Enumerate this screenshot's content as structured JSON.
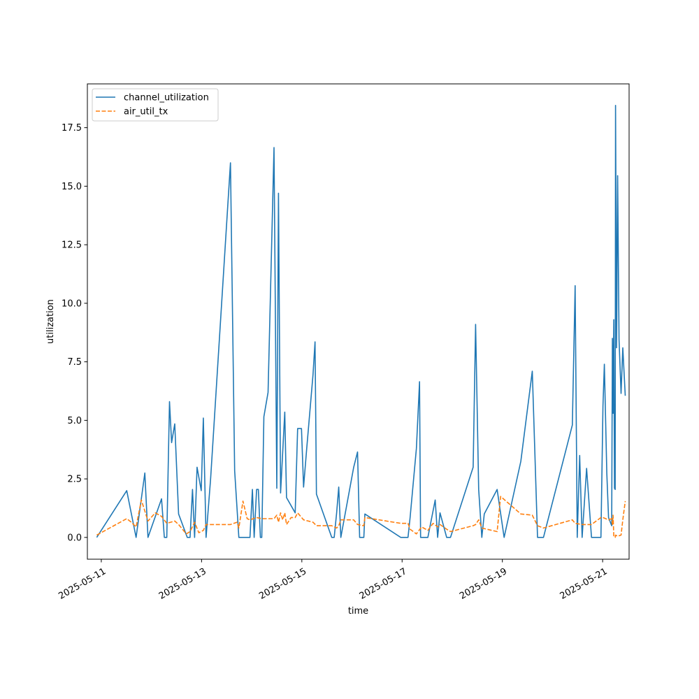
{
  "chart_data": {
    "type": "line",
    "xlabel": "time",
    "ylabel": "utilization",
    "xlim": [
      "2025-05-10T17:20",
      "2025-05-21T12:40"
    ],
    "ylim": [
      -0.93,
      19.37
    ],
    "x_ticks": [
      {
        "value": "2025-05-11T00:00",
        "label": "2025-05-11"
      },
      {
        "value": "2025-05-13T00:00",
        "label": "2025-05-13"
      },
      {
        "value": "2025-05-15T00:00",
        "label": "2025-05-15"
      },
      {
        "value": "2025-05-17T00:00",
        "label": "2025-05-17"
      },
      {
        "value": "2025-05-19T00:00",
        "label": "2025-05-19"
      },
      {
        "value": "2025-05-21T00:00",
        "label": "2025-05-21"
      }
    ],
    "y_ticks": [
      {
        "value": 0.0,
        "label": "0.0"
      },
      {
        "value": 2.5,
        "label": "2.5"
      },
      {
        "value": 5.0,
        "label": "5.0"
      },
      {
        "value": 7.5,
        "label": "7.5"
      },
      {
        "value": 10.0,
        "label": "10.0"
      },
      {
        "value": 12.5,
        "label": "12.5"
      },
      {
        "value": 15.0,
        "label": "15.0"
      },
      {
        "value": 17.5,
        "label": "17.5"
      }
    ],
    "grid": false,
    "legend_position": "top-left",
    "series": [
      {
        "name": "channel_utilization",
        "color": "#1f77b4",
        "style": "solid",
        "points": [
          [
            "2025-05-10T21:50",
            0.0
          ],
          [
            "2025-05-11T12:10",
            2.0
          ],
          [
            "2025-05-11T16:40",
            0.0
          ],
          [
            "2025-05-11T20:50",
            2.75
          ],
          [
            "2025-05-11T22:20",
            0.0
          ],
          [
            "2025-05-12T04:50",
            1.65
          ],
          [
            "2025-05-12T06:10",
            0.0
          ],
          [
            "2025-05-12T07:20",
            0.0
          ],
          [
            "2025-05-12T08:40",
            5.8
          ],
          [
            "2025-05-12T09:40",
            4.05
          ],
          [
            "2025-05-12T11:10",
            4.85
          ],
          [
            "2025-05-12T13:00",
            1.0
          ],
          [
            "2025-05-12T17:10",
            0.0
          ],
          [
            "2025-05-12T18:30",
            0.0
          ],
          [
            "2025-05-12T19:40",
            2.05
          ],
          [
            "2025-05-12T20:40",
            0.0
          ],
          [
            "2025-05-12T21:50",
            3.0
          ],
          [
            "2025-05-12T23:50",
            2.0
          ],
          [
            "2025-05-13T00:50",
            5.1
          ],
          [
            "2025-05-13T02:10",
            0.0
          ],
          [
            "2025-05-13T04:20",
            2.5
          ],
          [
            "2025-05-13T13:50",
            16.0
          ],
          [
            "2025-05-13T15:50",
            2.85
          ],
          [
            "2025-05-13T17:50",
            0.0
          ],
          [
            "2025-05-13T23:10",
            0.0
          ],
          [
            "2025-05-14T00:20",
            2.05
          ],
          [
            "2025-05-14T01:10",
            0.0
          ],
          [
            "2025-05-14T02:20",
            2.05
          ],
          [
            "2025-05-14T03:10",
            2.05
          ],
          [
            "2025-05-14T04:10",
            0.0
          ],
          [
            "2025-05-14T04:50",
            0.0
          ],
          [
            "2025-05-14T05:50",
            5.15
          ],
          [
            "2025-05-14T07:50",
            6.2
          ],
          [
            "2025-05-14T10:40",
            16.65
          ],
          [
            "2025-05-14T12:00",
            2.1
          ],
          [
            "2025-05-14T12:50",
            14.7
          ],
          [
            "2025-05-14T13:50",
            1.9
          ],
          [
            "2025-05-14T15:50",
            5.35
          ],
          [
            "2025-05-14T16:40",
            1.7
          ],
          [
            "2025-05-14T20:50",
            1.05
          ],
          [
            "2025-05-14T22:00",
            4.65
          ],
          [
            "2025-05-14T23:50",
            4.65
          ],
          [
            "2025-05-15T00:50",
            2.15
          ],
          [
            "2025-05-15T02:20",
            3.8
          ],
          [
            "2025-05-15T05:20",
            6.95
          ],
          [
            "2025-05-15T06:20",
            8.35
          ],
          [
            "2025-05-15T07:00",
            1.85
          ],
          [
            "2025-05-15T14:20",
            0.0
          ],
          [
            "2025-05-15T15:30",
            0.0
          ],
          [
            "2025-05-15T16:40",
            1.05
          ],
          [
            "2025-05-15T17:40",
            2.15
          ],
          [
            "2025-05-15T18:40",
            0.0
          ],
          [
            "2025-05-16T00:50",
            3.0
          ],
          [
            "2025-05-16T02:40",
            3.65
          ],
          [
            "2025-05-16T03:40",
            0.0
          ],
          [
            "2025-05-16T05:40",
            0.0
          ],
          [
            "2025-05-16T06:10",
            1.0
          ],
          [
            "2025-05-16T23:20",
            0.0
          ],
          [
            "2025-05-17T02:50",
            0.0
          ],
          [
            "2025-05-17T03:50",
            0.85
          ],
          [
            "2025-05-17T06:50",
            3.8
          ],
          [
            "2025-05-17T08:20",
            6.65
          ],
          [
            "2025-05-17T08:50",
            0.0
          ],
          [
            "2025-05-17T12:20",
            0.0
          ],
          [
            "2025-05-17T15:50",
            1.6
          ],
          [
            "2025-05-17T17:00",
            0.0
          ],
          [
            "2025-05-17T18:10",
            1.05
          ],
          [
            "2025-05-17T21:20",
            0.0
          ],
          [
            "2025-05-17T23:10",
            0.0
          ],
          [
            "2025-05-18T10:00",
            3.0
          ],
          [
            "2025-05-18T11:10",
            9.1
          ],
          [
            "2025-05-18T12:40",
            2.05
          ],
          [
            "2025-05-18T14:10",
            0.0
          ],
          [
            "2025-05-18T15:20",
            1.0
          ],
          [
            "2025-05-18T21:30",
            2.05
          ],
          [
            "2025-05-19T00:50",
            0.0
          ],
          [
            "2025-05-19T08:50",
            3.25
          ],
          [
            "2025-05-19T14:20",
            7.1
          ],
          [
            "2025-05-19T16:50",
            0.0
          ],
          [
            "2025-05-19T19:40",
            0.0
          ],
          [
            "2025-05-20T09:30",
            4.8
          ],
          [
            "2025-05-20T10:50",
            10.75
          ],
          [
            "2025-05-20T11:50",
            0.0
          ],
          [
            "2025-05-20T13:00",
            3.5
          ],
          [
            "2025-05-20T14:10",
            0.0
          ],
          [
            "2025-05-20T16:20",
            2.95
          ],
          [
            "2025-05-20T18:40",
            0.0
          ],
          [
            "2025-05-20T23:10",
            0.0
          ],
          [
            "2025-05-21T00:10",
            5.6
          ],
          [
            "2025-05-21T00:50",
            7.4
          ],
          [
            "2025-05-21T02:00",
            2.75
          ],
          [
            "2025-05-21T02:50",
            0.85
          ],
          [
            "2025-05-21T04:20",
            0.5
          ],
          [
            "2025-05-21T04:40",
            8.5
          ],
          [
            "2025-05-21T05:00",
            5.3
          ],
          [
            "2025-05-21T05:20",
            9.3
          ],
          [
            "2025-05-21T05:40",
            2.1
          ],
          [
            "2025-05-21T06:00",
            2.05
          ],
          [
            "2025-05-21T06:10",
            18.45
          ],
          [
            "2025-05-21T06:40",
            8.1
          ],
          [
            "2025-05-21T07:10",
            15.45
          ],
          [
            "2025-05-21T07:50",
            8.45
          ],
          [
            "2025-05-21T08:50",
            6.15
          ],
          [
            "2025-05-21T09:40",
            8.1
          ],
          [
            "2025-05-21T10:50",
            6.05
          ]
        ]
      },
      {
        "name": "air_util_tx",
        "color": "#ff7f0e",
        "style": "dashed",
        "points": [
          [
            "2025-05-10T21:50",
            0.1
          ],
          [
            "2025-05-11T12:10",
            0.8
          ],
          [
            "2025-05-11T14:20",
            0.65
          ],
          [
            "2025-05-11T16:40",
            0.45
          ],
          [
            "2025-05-11T19:10",
            1.6
          ],
          [
            "2025-05-11T22:20",
            0.7
          ],
          [
            "2025-05-12T01:50",
            1.05
          ],
          [
            "2025-05-12T04:50",
            0.9
          ],
          [
            "2025-05-12T07:20",
            0.6
          ],
          [
            "2025-05-12T11:10",
            0.7
          ],
          [
            "2025-05-12T13:00",
            0.55
          ],
          [
            "2025-05-12T16:40",
            0.15
          ],
          [
            "2025-05-12T18:30",
            0.25
          ],
          [
            "2025-05-12T20:40",
            0.65
          ],
          [
            "2025-05-12T22:40",
            0.2
          ],
          [
            "2025-05-13T00:50",
            0.3
          ],
          [
            "2025-05-13T02:10",
            0.55
          ],
          [
            "2025-05-13T13:50",
            0.55
          ],
          [
            "2025-05-13T17:00",
            0.65
          ],
          [
            "2025-05-13T17:50",
            0.4
          ],
          [
            "2025-05-13T19:50",
            1.55
          ],
          [
            "2025-05-13T21:50",
            0.8
          ],
          [
            "2025-05-13T23:10",
            0.75
          ],
          [
            "2025-05-14T02:20",
            0.85
          ],
          [
            "2025-05-14T04:50",
            0.8
          ],
          [
            "2025-05-14T07:50",
            0.8
          ],
          [
            "2025-05-14T10:40",
            0.8
          ],
          [
            "2025-05-14T12:00",
            0.95
          ],
          [
            "2025-05-14T12:50",
            0.65
          ],
          [
            "2025-05-14T13:50",
            1.05
          ],
          [
            "2025-05-14T14:50",
            0.75
          ],
          [
            "2025-05-14T15:50",
            1.05
          ],
          [
            "2025-05-14T16:40",
            0.55
          ],
          [
            "2025-05-14T18:50",
            0.85
          ],
          [
            "2025-05-14T20:50",
            0.85
          ],
          [
            "2025-05-14T22:00",
            1.05
          ],
          [
            "2025-05-15T00:50",
            0.75
          ],
          [
            "2025-05-15T05:20",
            0.65
          ],
          [
            "2025-05-15T07:00",
            0.5
          ],
          [
            "2025-05-15T14:20",
            0.5
          ],
          [
            "2025-05-15T16:40",
            0.4
          ],
          [
            "2025-05-15T17:40",
            0.5
          ],
          [
            "2025-05-15T18:40",
            0.75
          ],
          [
            "2025-05-16T00:50",
            0.75
          ],
          [
            "2025-05-16T02:40",
            0.55
          ],
          [
            "2025-05-16T05:40",
            0.5
          ],
          [
            "2025-05-16T06:10",
            0.85
          ],
          [
            "2025-05-16T23:20",
            0.6
          ],
          [
            "2025-05-17T02:50",
            0.6
          ],
          [
            "2025-05-17T03:50",
            0.35
          ],
          [
            "2025-05-17T06:50",
            0.15
          ],
          [
            "2025-05-17T09:20",
            0.45
          ],
          [
            "2025-05-17T12:20",
            0.3
          ],
          [
            "2025-05-17T14:50",
            0.6
          ],
          [
            "2025-05-17T17:00",
            0.45
          ],
          [
            "2025-05-17T18:10",
            0.55
          ],
          [
            "2025-05-17T21:20",
            0.35
          ],
          [
            "2025-05-17T23:10",
            0.25
          ],
          [
            "2025-05-18T10:00",
            0.5
          ],
          [
            "2025-05-18T11:10",
            0.55
          ],
          [
            "2025-05-18T12:40",
            0.75
          ],
          [
            "2025-05-18T14:10",
            0.4
          ],
          [
            "2025-05-18T21:30",
            0.25
          ],
          [
            "2025-05-18T23:10",
            1.75
          ],
          [
            "2025-05-19T08:50",
            1.0
          ],
          [
            "2025-05-19T14:20",
            0.95
          ],
          [
            "2025-05-19T16:50",
            0.5
          ],
          [
            "2025-05-19T19:40",
            0.4
          ],
          [
            "2025-05-20T09:30",
            0.75
          ],
          [
            "2025-05-20T10:50",
            0.6
          ],
          [
            "2025-05-20T14:10",
            0.55
          ],
          [
            "2025-05-20T18:40",
            0.55
          ],
          [
            "2025-05-20T23:10",
            0.85
          ],
          [
            "2025-05-21T00:10",
            0.85
          ],
          [
            "2025-05-21T02:50",
            0.75
          ],
          [
            "2025-05-21T04:20",
            0.8
          ],
          [
            "2025-05-21T04:40",
            0.55
          ],
          [
            "2025-05-21T05:00",
            0.95
          ],
          [
            "2025-05-21T05:20",
            0.05
          ],
          [
            "2025-05-21T06:00",
            0.0
          ],
          [
            "2025-05-21T06:10",
            0.1
          ],
          [
            "2025-05-21T07:10",
            0.05
          ],
          [
            "2025-05-21T08:50",
            0.1
          ],
          [
            "2025-05-21T09:40",
            0.75
          ],
          [
            "2025-05-21T10:50",
            1.55
          ]
        ]
      }
    ]
  }
}
